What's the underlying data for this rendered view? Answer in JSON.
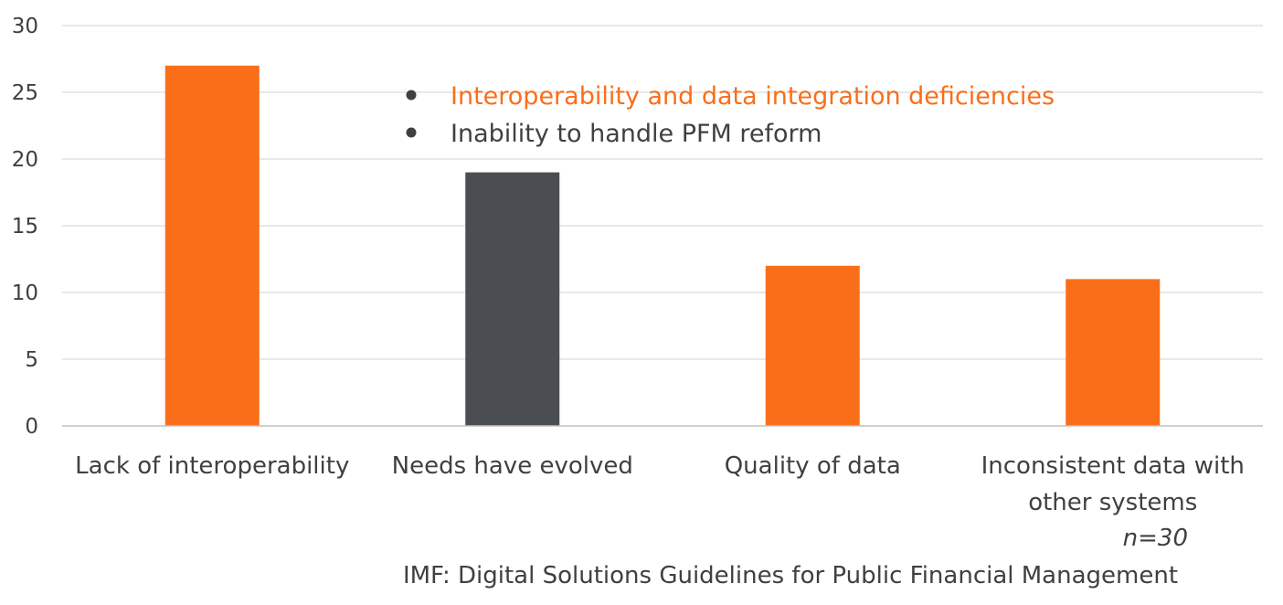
{
  "chart_data": {
    "type": "bar",
    "categories": [
      "Lack of interoperability",
      "Needs have evolved",
      "Quality of data",
      "Inconsistent data with other systems"
    ],
    "series": [
      {
        "values": [
          27,
          19,
          12,
          11
        ],
        "colors": [
          "#fa6e1a",
          "#4a4e52",
          "#fa6e1a",
          "#fa6e1a"
        ]
      }
    ],
    "ylim": [
      0,
      30
    ],
    "yticks": [
      "0",
      "5",
      "10",
      "15",
      "20",
      "25",
      "30"
    ],
    "grid": true,
    "legend": {
      "placement": "top-center",
      "entries": [
        {
          "label": "Interoperability and data integration deficiencies",
          "color": "#fa6e1a"
        },
        {
          "label": "Inability to handle PFM reform",
          "color": "#404040"
        }
      ]
    },
    "annotations": {
      "sample": "n=30",
      "source": "IMF: Digital Solutions Guidelines for Public Financial Management"
    }
  }
}
